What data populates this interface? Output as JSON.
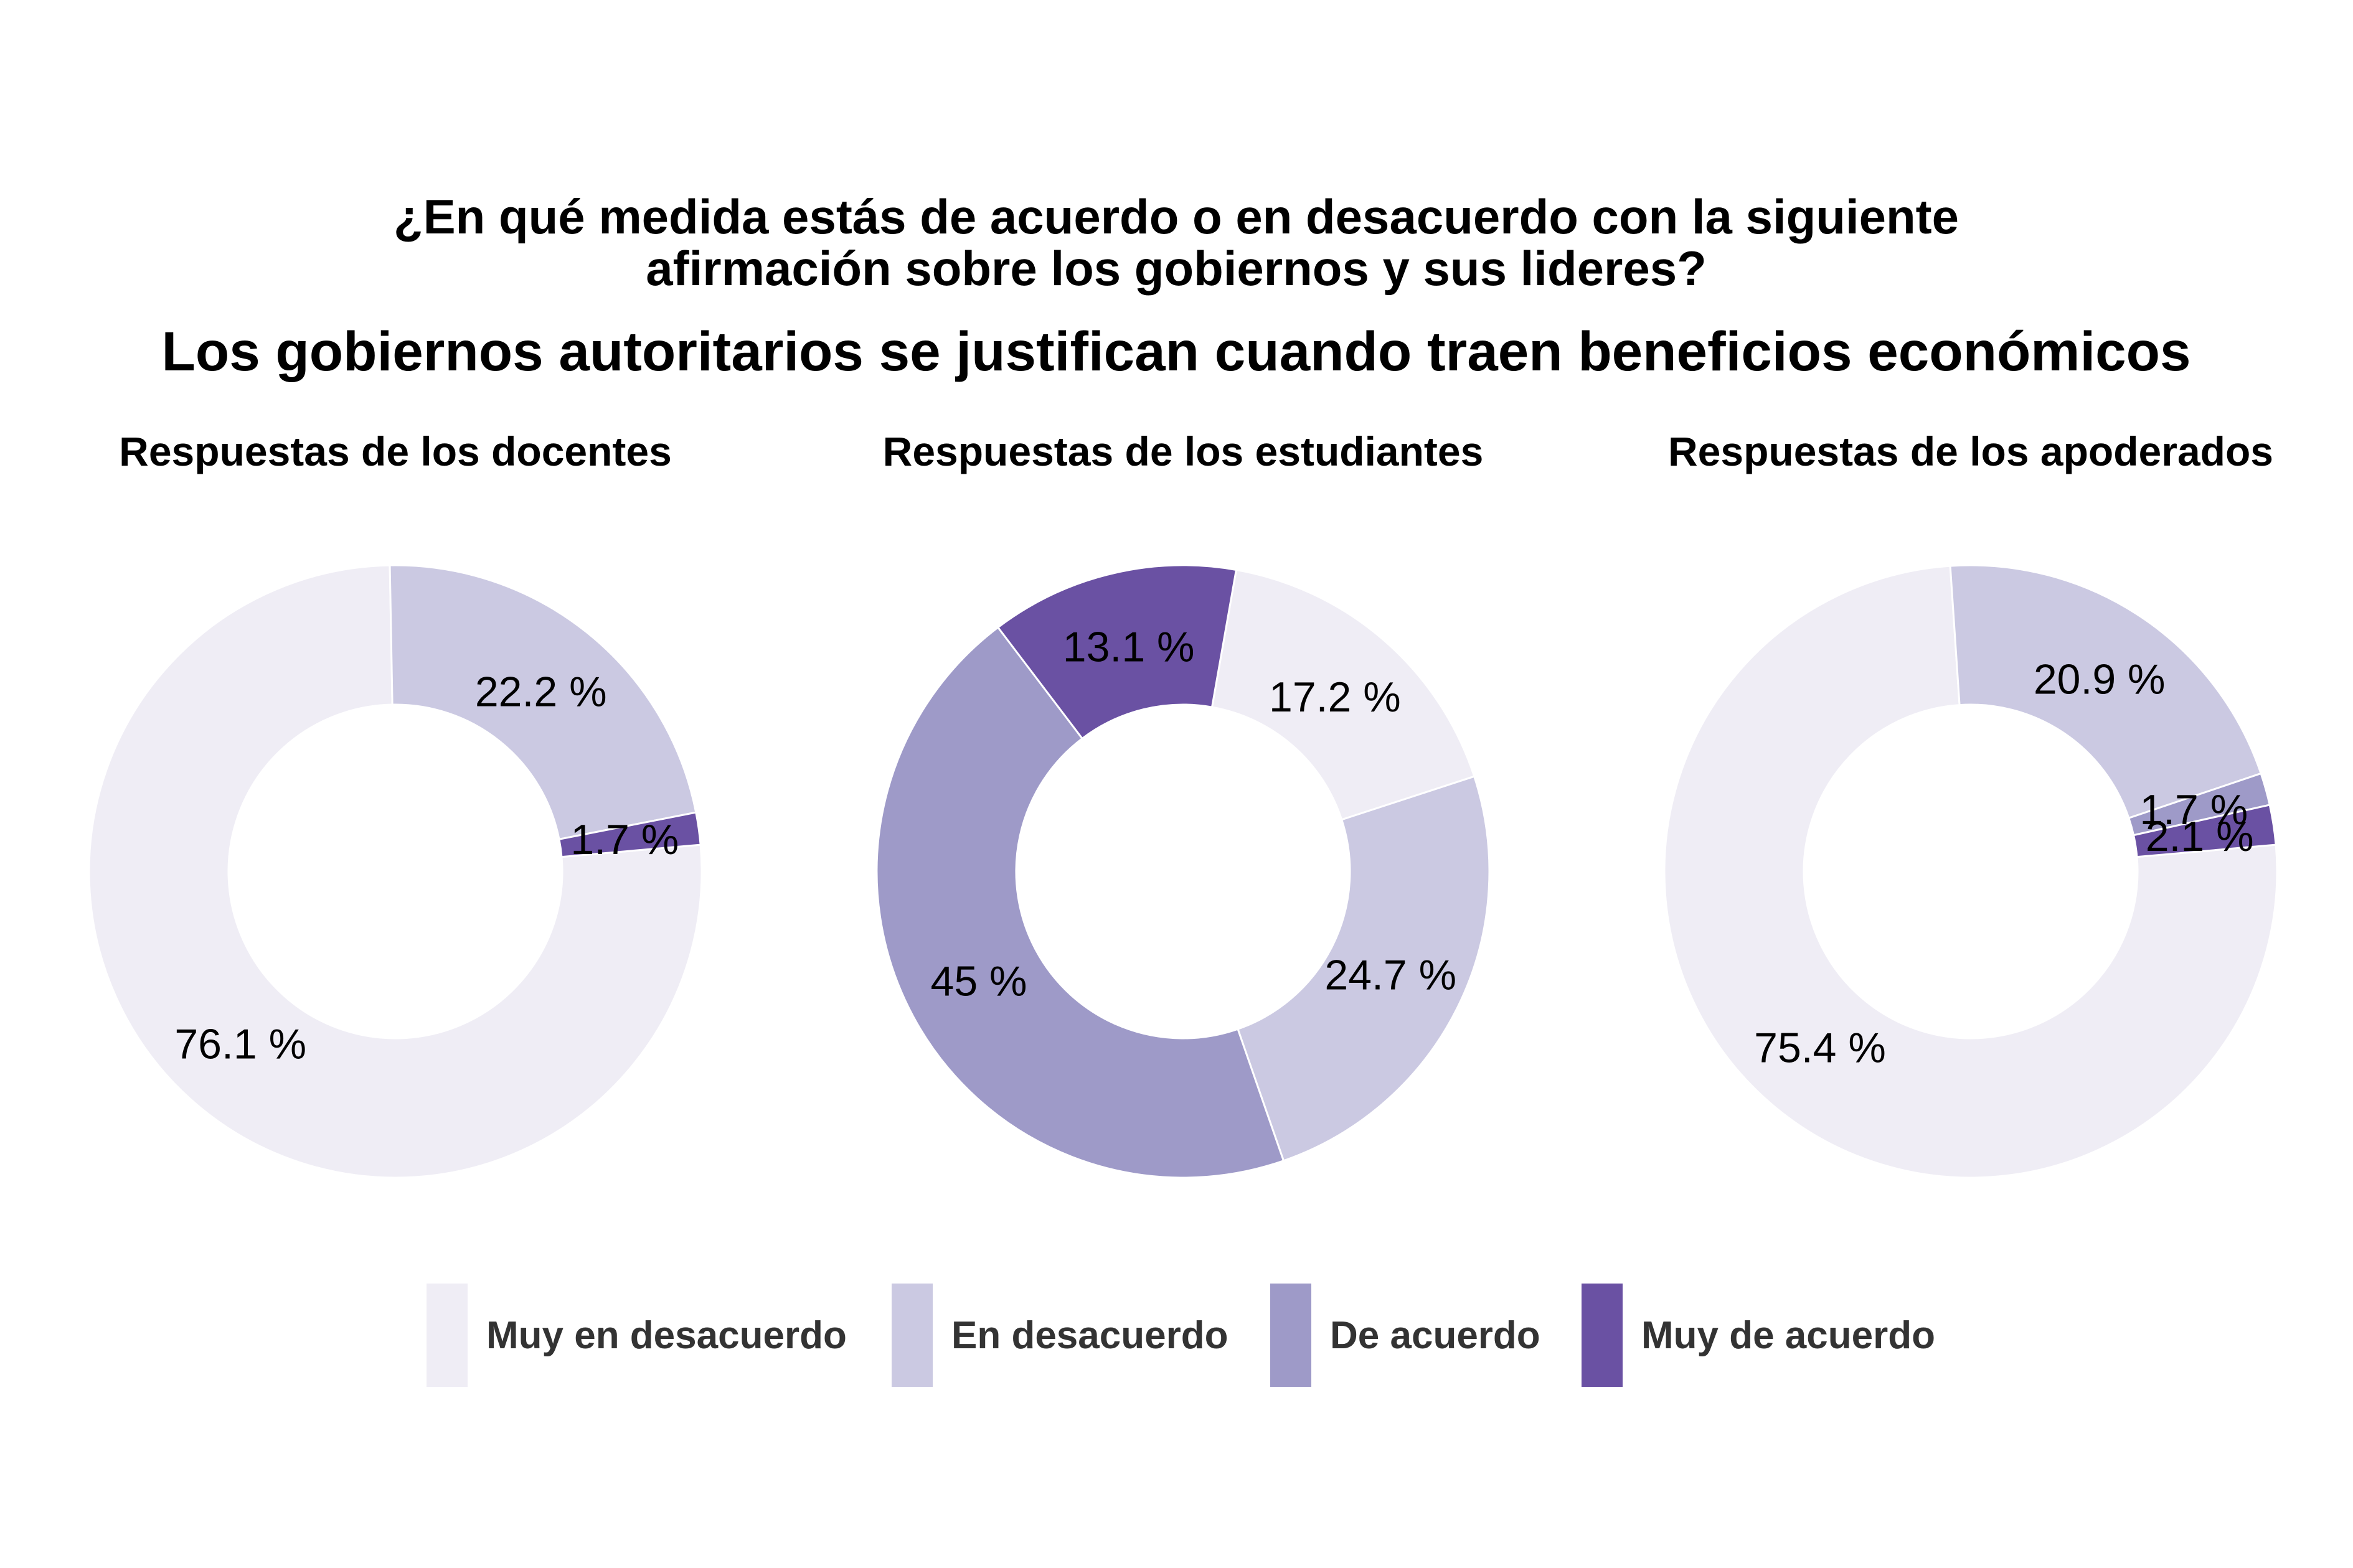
{
  "title_line1": "¿En qué medida estás de acuerdo o en desacuerdo con la siguiente",
  "title_line2": "afirmación sobre los gobiernos y sus lideres?",
  "subtitle": "Los gobiernos autoritarios se justifican cuando traen beneficios económicos",
  "legend_position": "bottom",
  "categories": [
    {
      "label": "Muy en desacuerdo",
      "color": "#efedf5"
    },
    {
      "label": "En desacuerdo",
      "color": "#cbc9e2"
    },
    {
      "label": "De acuerdo",
      "color": "#9e9ac8"
    },
    {
      "label": "Muy de acuerdo",
      "color": "#6a51a3"
    }
  ],
  "chart_data": [
    {
      "type": "pie",
      "title": "Respuestas de los docentes",
      "slices": [
        {
          "category": "Muy en desacuerdo",
          "value": 76.1,
          "label": "76.1 %"
        },
        {
          "category": "En desacuerdo",
          "value": 22.2,
          "label": "22.2 %"
        },
        {
          "category": "Muy de acuerdo",
          "value": 1.7,
          "label": "1.7 %"
        }
      ]
    },
    {
      "type": "pie",
      "title": "Respuestas de los estudiantes",
      "slices": [
        {
          "category": "Muy en desacuerdo",
          "value": 17.2,
          "label": "17.2 %"
        },
        {
          "category": "En desacuerdo",
          "value": 24.7,
          "label": "24.7 %"
        },
        {
          "category": "De acuerdo",
          "value": 45.0,
          "label": "45 %"
        },
        {
          "category": "Muy de acuerdo",
          "value": 13.1,
          "label": "13.1 %"
        }
      ]
    },
    {
      "type": "pie",
      "title": "Respuestas de los apoderados",
      "slices": [
        {
          "category": "Muy en desacuerdo",
          "value": 75.4,
          "label": "75.4 %"
        },
        {
          "category": "En desacuerdo",
          "value": 20.9,
          "label": "20.9 %"
        },
        {
          "category": "De acuerdo",
          "value": 1.7,
          "label": "1.7 %"
        },
        {
          "category": "Muy de acuerdo",
          "value": 2.1,
          "label": "2.1 %"
        }
      ]
    }
  ]
}
